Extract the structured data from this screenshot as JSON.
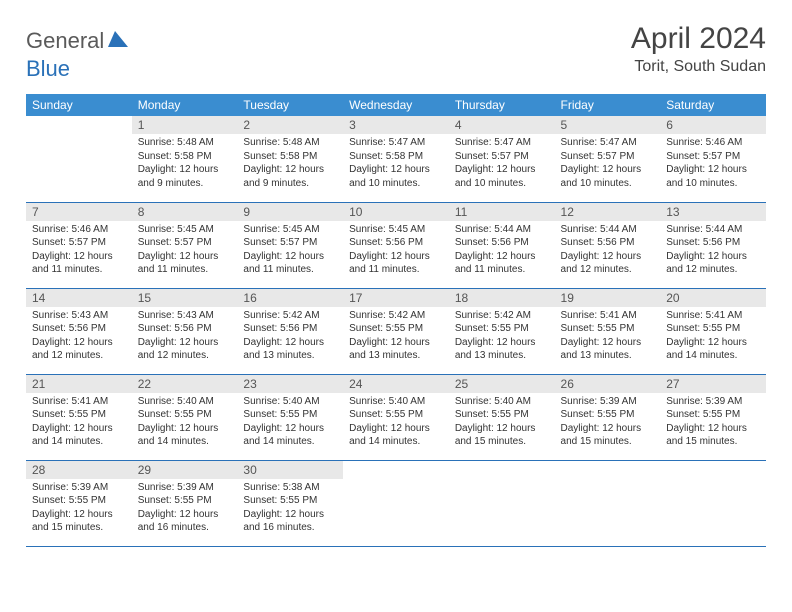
{
  "logo": {
    "word1": "General",
    "word2": "Blue"
  },
  "title": "April 2024",
  "location": "Torit, South Sudan",
  "colors": {
    "header_bg": "#3a8dd0",
    "header_text": "#ffffff",
    "daynum_bg": "#e8e8e8",
    "border": "#2a71b8",
    "logo_gray": "#5a5a5a",
    "logo_blue": "#2a71b8",
    "text": "#333333",
    "page_bg": "#ffffff"
  },
  "dayHeaders": [
    "Sunday",
    "Monday",
    "Tuesday",
    "Wednesday",
    "Thursday",
    "Friday",
    "Saturday"
  ],
  "weeks": [
    [
      null,
      {
        "n": "1",
        "sr": "5:48 AM",
        "ss": "5:58 PM",
        "dl": "12 hours and 9 minutes."
      },
      {
        "n": "2",
        "sr": "5:48 AM",
        "ss": "5:58 PM",
        "dl": "12 hours and 9 minutes."
      },
      {
        "n": "3",
        "sr": "5:47 AM",
        "ss": "5:58 PM",
        "dl": "12 hours and 10 minutes."
      },
      {
        "n": "4",
        "sr": "5:47 AM",
        "ss": "5:57 PM",
        "dl": "12 hours and 10 minutes."
      },
      {
        "n": "5",
        "sr": "5:47 AM",
        "ss": "5:57 PM",
        "dl": "12 hours and 10 minutes."
      },
      {
        "n": "6",
        "sr": "5:46 AM",
        "ss": "5:57 PM",
        "dl": "12 hours and 10 minutes."
      }
    ],
    [
      {
        "n": "7",
        "sr": "5:46 AM",
        "ss": "5:57 PM",
        "dl": "12 hours and 11 minutes."
      },
      {
        "n": "8",
        "sr": "5:45 AM",
        "ss": "5:57 PM",
        "dl": "12 hours and 11 minutes."
      },
      {
        "n": "9",
        "sr": "5:45 AM",
        "ss": "5:57 PM",
        "dl": "12 hours and 11 minutes."
      },
      {
        "n": "10",
        "sr": "5:45 AM",
        "ss": "5:56 PM",
        "dl": "12 hours and 11 minutes."
      },
      {
        "n": "11",
        "sr": "5:44 AM",
        "ss": "5:56 PM",
        "dl": "12 hours and 11 minutes."
      },
      {
        "n": "12",
        "sr": "5:44 AM",
        "ss": "5:56 PM",
        "dl": "12 hours and 12 minutes."
      },
      {
        "n": "13",
        "sr": "5:44 AM",
        "ss": "5:56 PM",
        "dl": "12 hours and 12 minutes."
      }
    ],
    [
      {
        "n": "14",
        "sr": "5:43 AM",
        "ss": "5:56 PM",
        "dl": "12 hours and 12 minutes."
      },
      {
        "n": "15",
        "sr": "5:43 AM",
        "ss": "5:56 PM",
        "dl": "12 hours and 12 minutes."
      },
      {
        "n": "16",
        "sr": "5:42 AM",
        "ss": "5:56 PM",
        "dl": "12 hours and 13 minutes."
      },
      {
        "n": "17",
        "sr": "5:42 AM",
        "ss": "5:55 PM",
        "dl": "12 hours and 13 minutes."
      },
      {
        "n": "18",
        "sr": "5:42 AM",
        "ss": "5:55 PM",
        "dl": "12 hours and 13 minutes."
      },
      {
        "n": "19",
        "sr": "5:41 AM",
        "ss": "5:55 PM",
        "dl": "12 hours and 13 minutes."
      },
      {
        "n": "20",
        "sr": "5:41 AM",
        "ss": "5:55 PM",
        "dl": "12 hours and 14 minutes."
      }
    ],
    [
      {
        "n": "21",
        "sr": "5:41 AM",
        "ss": "5:55 PM",
        "dl": "12 hours and 14 minutes."
      },
      {
        "n": "22",
        "sr": "5:40 AM",
        "ss": "5:55 PM",
        "dl": "12 hours and 14 minutes."
      },
      {
        "n": "23",
        "sr": "5:40 AM",
        "ss": "5:55 PM",
        "dl": "12 hours and 14 minutes."
      },
      {
        "n": "24",
        "sr": "5:40 AM",
        "ss": "5:55 PM",
        "dl": "12 hours and 14 minutes."
      },
      {
        "n": "25",
        "sr": "5:40 AM",
        "ss": "5:55 PM",
        "dl": "12 hours and 15 minutes."
      },
      {
        "n": "26",
        "sr": "5:39 AM",
        "ss": "5:55 PM",
        "dl": "12 hours and 15 minutes."
      },
      {
        "n": "27",
        "sr": "5:39 AM",
        "ss": "5:55 PM",
        "dl": "12 hours and 15 minutes."
      }
    ],
    [
      {
        "n": "28",
        "sr": "5:39 AM",
        "ss": "5:55 PM",
        "dl": "12 hours and 15 minutes."
      },
      {
        "n": "29",
        "sr": "5:39 AM",
        "ss": "5:55 PM",
        "dl": "12 hours and 16 minutes."
      },
      {
        "n": "30",
        "sr": "5:38 AM",
        "ss": "5:55 PM",
        "dl": "12 hours and 16 minutes."
      },
      null,
      null,
      null,
      null
    ]
  ],
  "labels": {
    "sunrise": "Sunrise:",
    "sunset": "Sunset:",
    "daylight": "Daylight:"
  }
}
